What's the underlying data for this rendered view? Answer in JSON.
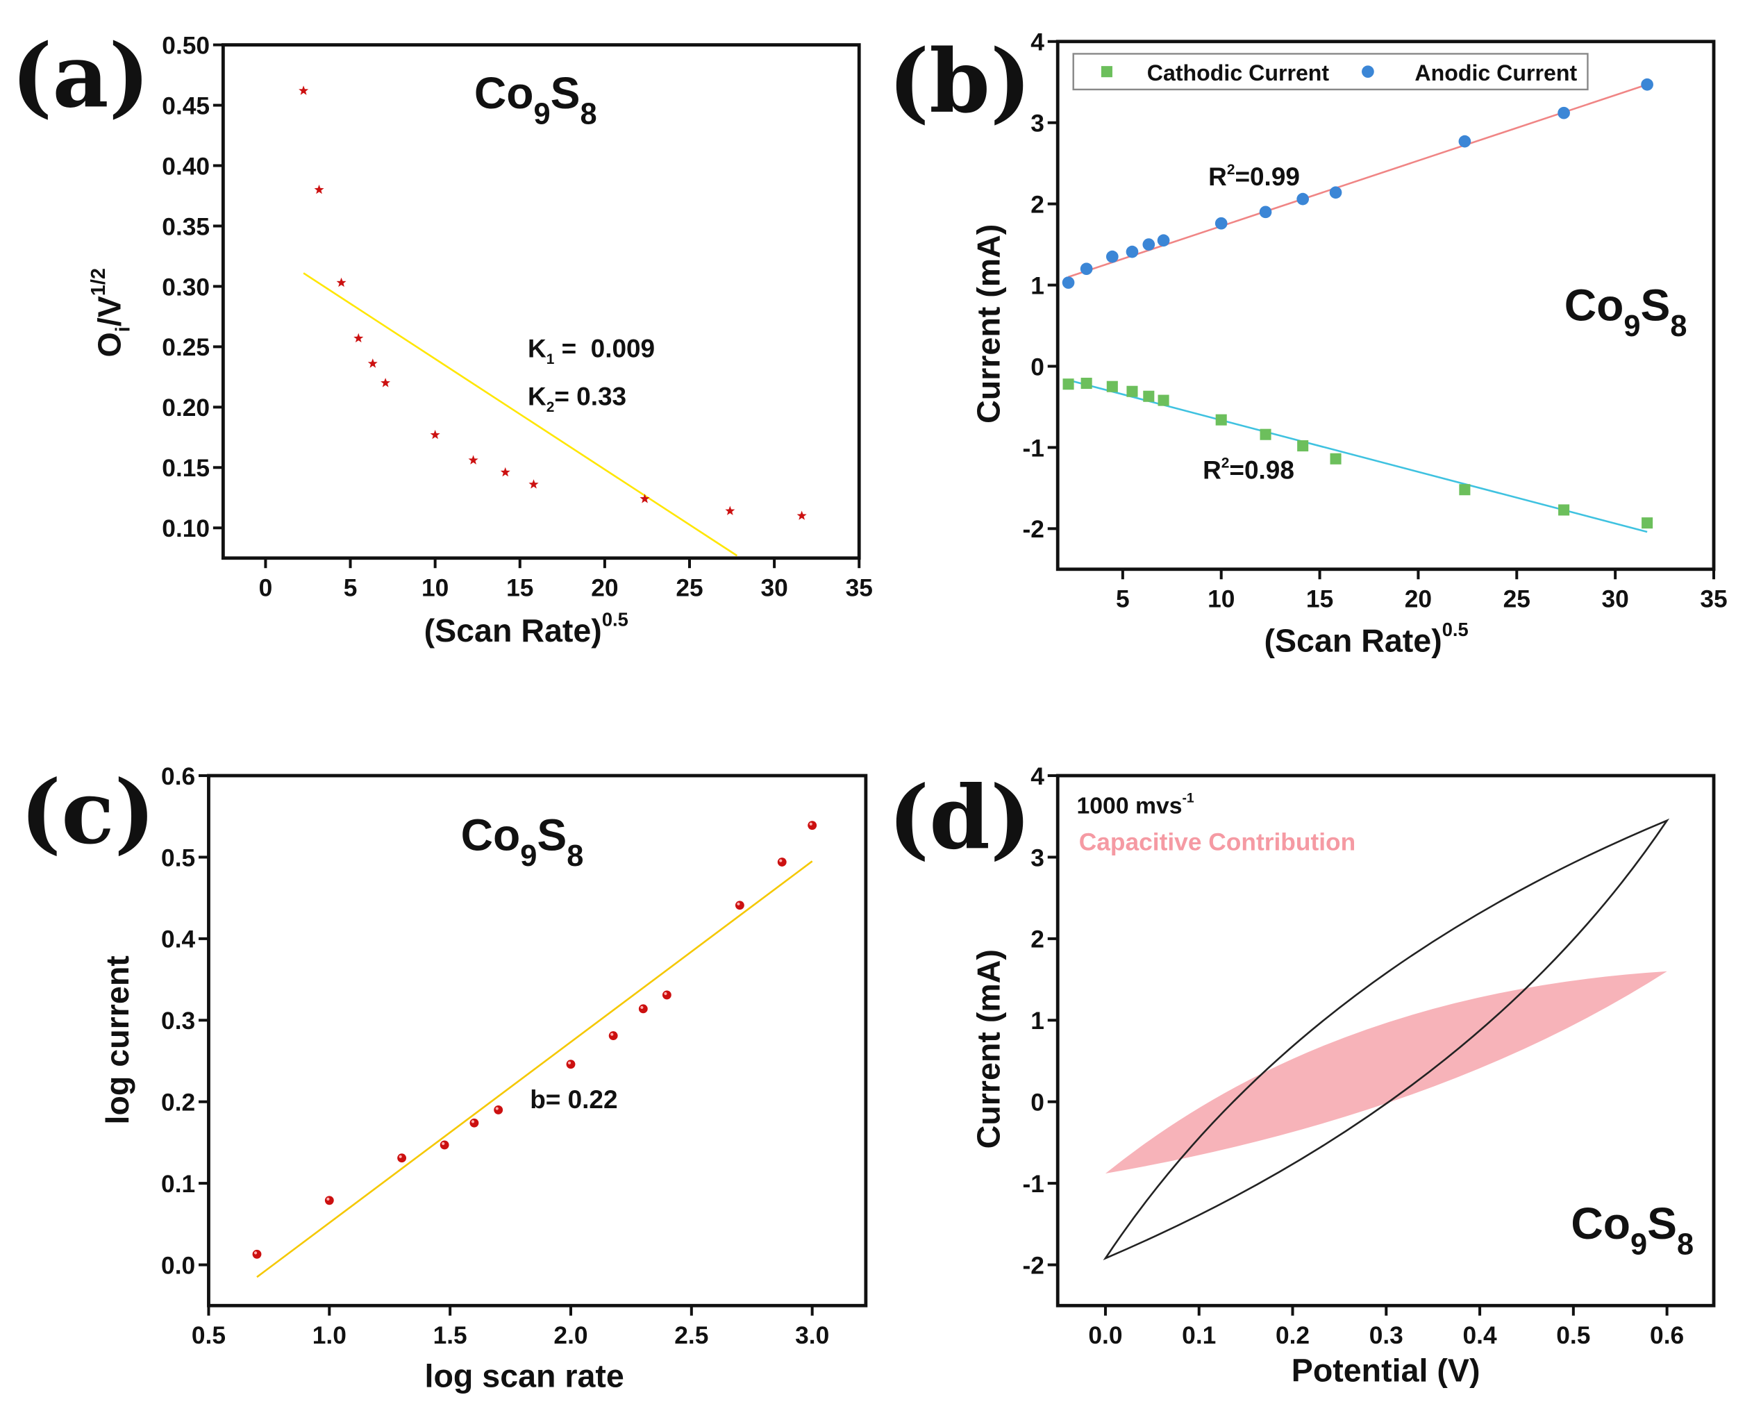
{
  "colors": {
    "star": "#cc1111",
    "fit_a": "#ffe600",
    "anodic": "#3b86d6",
    "cathodic": "#6cbf5c",
    "anodic_fit": "#f08585",
    "cathodic_fit": "#3fc2e0",
    "sphere": "#cc1010",
    "fit_c": "#f5c800",
    "cv": "#222222",
    "capacitive": "#f7b3b9",
    "capacitive_text": "#f59aa3"
  },
  "chart_data": [
    {
      "panel": "(a)",
      "type": "scatter",
      "formula": {
        "a": "Co",
        "b": "9",
        "c": "S",
        "d": "8"
      },
      "xlabel": {
        "main": "(Scan Rate)",
        "sup": "0.5"
      },
      "ylabel": {
        "a": "O",
        "b": "i",
        "c": "/V",
        "d": "1/2"
      },
      "xlim": [
        -2.5,
        35
      ],
      "ylim": [
        0.075,
        0.5
      ],
      "xticks": [
        "0",
        "5",
        "10",
        "15",
        "20",
        "25",
        "30",
        "35"
      ],
      "yticks": [
        "0.10",
        "0.15",
        "0.20",
        "0.25",
        "0.30",
        "0.35",
        "0.40",
        "0.45",
        "0.50"
      ],
      "annotations": {
        "k1_label": "K",
        "k1_sub": "1",
        "k1_val": " =  0.009",
        "k2_label": "K",
        "k2_sub": "2",
        "k2_val": "= 0.33"
      },
      "x": [
        2.24,
        3.16,
        4.47,
        5.48,
        6.32,
        7.07,
        10,
        12.25,
        14.14,
        15.81,
        22.36,
        27.39,
        31.62
      ],
      "y": [
        0.462,
        0.38,
        0.303,
        0.257,
        0.236,
        0.22,
        0.177,
        0.156,
        0.146,
        0.136,
        0.124,
        0.114,
        0.11
      ],
      "fit": [
        [
          2.24,
          0.311
        ],
        [
          27.8,
          0.077
        ]
      ]
    },
    {
      "panel": "(b)",
      "type": "scatter",
      "formula": {
        "a": "Co",
        "b": "9",
        "c": "S",
        "d": "8"
      },
      "xlabel": {
        "main": "(Scan Rate)",
        "sup": "0.5"
      },
      "ylabel": "Current (mA)",
      "xlim": [
        1.7,
        35
      ],
      "ylim": [
        -2.5,
        4
      ],
      "xticks": [
        "5",
        "10",
        "15",
        "20",
        "25",
        "30",
        "35"
      ],
      "yticks": [
        "-2",
        "-1",
        "0",
        "1",
        "2",
        "3",
        "4"
      ],
      "legend": [
        "Cathodic Current",
        "Anodic Current"
      ],
      "r2_anodic": {
        "a": "R",
        "sup": "2",
        "b": "=0.99"
      },
      "r2_cathodic": {
        "a": "R",
        "sup": "2",
        "b": "=0.98"
      },
      "x": [
        2.24,
        3.16,
        4.47,
        5.48,
        6.32,
        7.07,
        10,
        12.25,
        14.14,
        15.81,
        22.36,
        27.39,
        31.62
      ],
      "series": [
        {
          "name": "Cathodic Current",
          "values": [
            -0.22,
            -0.21,
            -0.25,
            -0.31,
            -0.37,
            -0.42,
            -0.66,
            -0.84,
            -0.98,
            -1.14,
            -1.52,
            -1.77,
            -1.93
          ],
          "fit": [
            [
              2.24,
              -0.17
            ],
            [
              31.62,
              -2.04
            ]
          ]
        },
        {
          "name": "Anodic Current",
          "values": [
            1.03,
            1.2,
            1.35,
            1.41,
            1.5,
            1.55,
            1.76,
            1.9,
            2.06,
            2.14,
            2.77,
            3.12,
            3.47
          ],
          "fit": [
            [
              2.24,
              1.1
            ],
            [
              31.62,
              3.47
            ]
          ]
        }
      ]
    },
    {
      "panel": "(c)",
      "type": "scatter",
      "formula": {
        "a": "Co",
        "b": "9",
        "c": "S",
        "d": "8"
      },
      "xlabel": "log scan rate",
      "ylabel": "log current",
      "xlim": [
        0.5,
        3.222
      ],
      "ylim": [
        -0.05,
        0.6
      ],
      "xticks": [
        "0.5",
        "1.0",
        "1.5",
        "2.0",
        "2.5",
        "3.0"
      ],
      "yticks": [
        "0.0",
        "0.1",
        "0.2",
        "0.3",
        "0.4",
        "0.5",
        "0.6"
      ],
      "annotation": "b= 0.22",
      "x": [
        0.7,
        1.0,
        1.3,
        1.477,
        1.6,
        1.7,
        2.0,
        2.176,
        2.3,
        2.398,
        2.7,
        2.875,
        3.0
      ],
      "y": [
        0.013,
        0.079,
        0.131,
        0.147,
        0.174,
        0.19,
        0.246,
        0.281,
        0.314,
        0.331,
        0.441,
        0.494,
        0.539
      ],
      "fit": [
        [
          0.7,
          -0.015
        ],
        [
          3.0,
          0.495
        ]
      ]
    },
    {
      "panel": "(d)",
      "type": "line",
      "formula": {
        "a": "Co",
        "b": "9",
        "c": "S",
        "d": "8"
      },
      "xlabel": "Potential (V)",
      "ylabel": "Current (mA)",
      "xlim": [
        -0.051,
        0.65
      ],
      "ylim": [
        -2.5,
        4
      ],
      "xticks": [
        "0.0",
        "0.1",
        "0.2",
        "0.3",
        "0.4",
        "0.5",
        "0.6"
      ],
      "yticks": [
        "-2",
        "-1",
        "0",
        "1",
        "2",
        "3",
        "4"
      ],
      "scan_rate": {
        "a": "1000 mvs",
        "sup": "-1"
      },
      "legend": "Capacitive Contribution",
      "cv_loop": {
        "start": [
          0,
          -1.92
        ],
        "end": [
          0.6,
          3.45
        ],
        "upper_ctrl": [
          0.2,
          1.54
        ],
        "lower_ctrl": [
          0.4,
          0.04
        ]
      },
      "capacitive": {
        "start": [
          0,
          -0.88
        ],
        "end": [
          0.6,
          1.6
        ],
        "upper_ctrl": [
          0.24,
          1.34
        ],
        "lower_ctrl": [
          0.36,
          -0.16
        ]
      }
    }
  ]
}
